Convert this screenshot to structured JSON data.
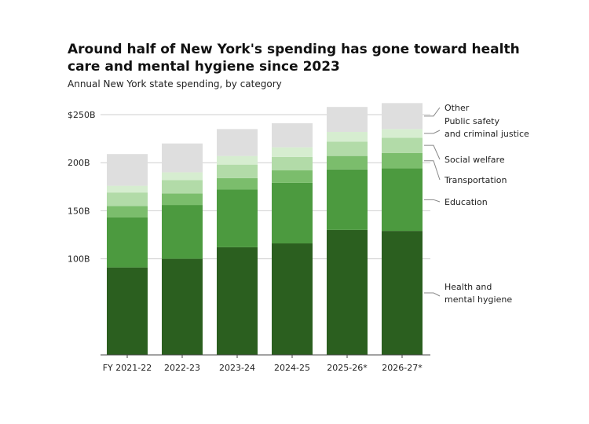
{
  "chart_data": {
    "type": "bar",
    "stacked": true,
    "title": "Around half of New York's spending has gone toward health care and mental hygiene since 2023",
    "subtitle": "Annual New York state spending, by category",
    "categories": [
      "FY 2021-22",
      "2022-23",
      "2023-24",
      "2024-25",
      "2025-26*",
      "2026-27*"
    ],
    "ylim": [
      0,
      250
    ],
    "yticks": [
      {
        "value": 250,
        "label": "$250B"
      },
      {
        "value": 200,
        "label": "200B"
      },
      {
        "value": 150,
        "label": "150B"
      },
      {
        "value": 100,
        "label": "100B"
      }
    ],
    "series": [
      {
        "name": "Health and mental hygiene",
        "color": "#2b5f1f",
        "values": [
          91,
          100,
          112,
          116,
          130,
          129
        ]
      },
      {
        "name": "Education",
        "color": "#4c9a3f",
        "values": [
          52,
          56,
          60,
          63,
          63,
          65
        ]
      },
      {
        "name": "Transportation",
        "color": "#7bbd6c",
        "values": [
          12,
          12,
          12,
          13,
          14,
          16
        ]
      },
      {
        "name": "Social welfare",
        "color": "#b2dba8",
        "values": [
          14,
          14,
          14,
          14,
          15,
          16
        ]
      },
      {
        "name": "Public safety and criminal justice",
        "color": "#d6edd0",
        "values": [
          7,
          8,
          9,
          10,
          10,
          9
        ]
      },
      {
        "name": "Other",
        "color": "#dedede",
        "values": [
          33,
          30,
          28,
          25,
          26,
          27
        ]
      }
    ],
    "legend_position": "right",
    "legend_labels": [
      {
        "series": 5,
        "lines": [
          "Other"
        ]
      },
      {
        "series": 4,
        "lines": [
          "Public safety",
          "and criminal justice"
        ]
      },
      {
        "series": 3,
        "lines": [
          "Social welfare"
        ]
      },
      {
        "series": 2,
        "lines": [
          "Transportation"
        ]
      },
      {
        "series": 1,
        "lines": [
          "Education"
        ]
      },
      {
        "series": 0,
        "lines": [
          "Health and",
          "mental hygiene"
        ]
      }
    ],
    "gridlines": true
  }
}
